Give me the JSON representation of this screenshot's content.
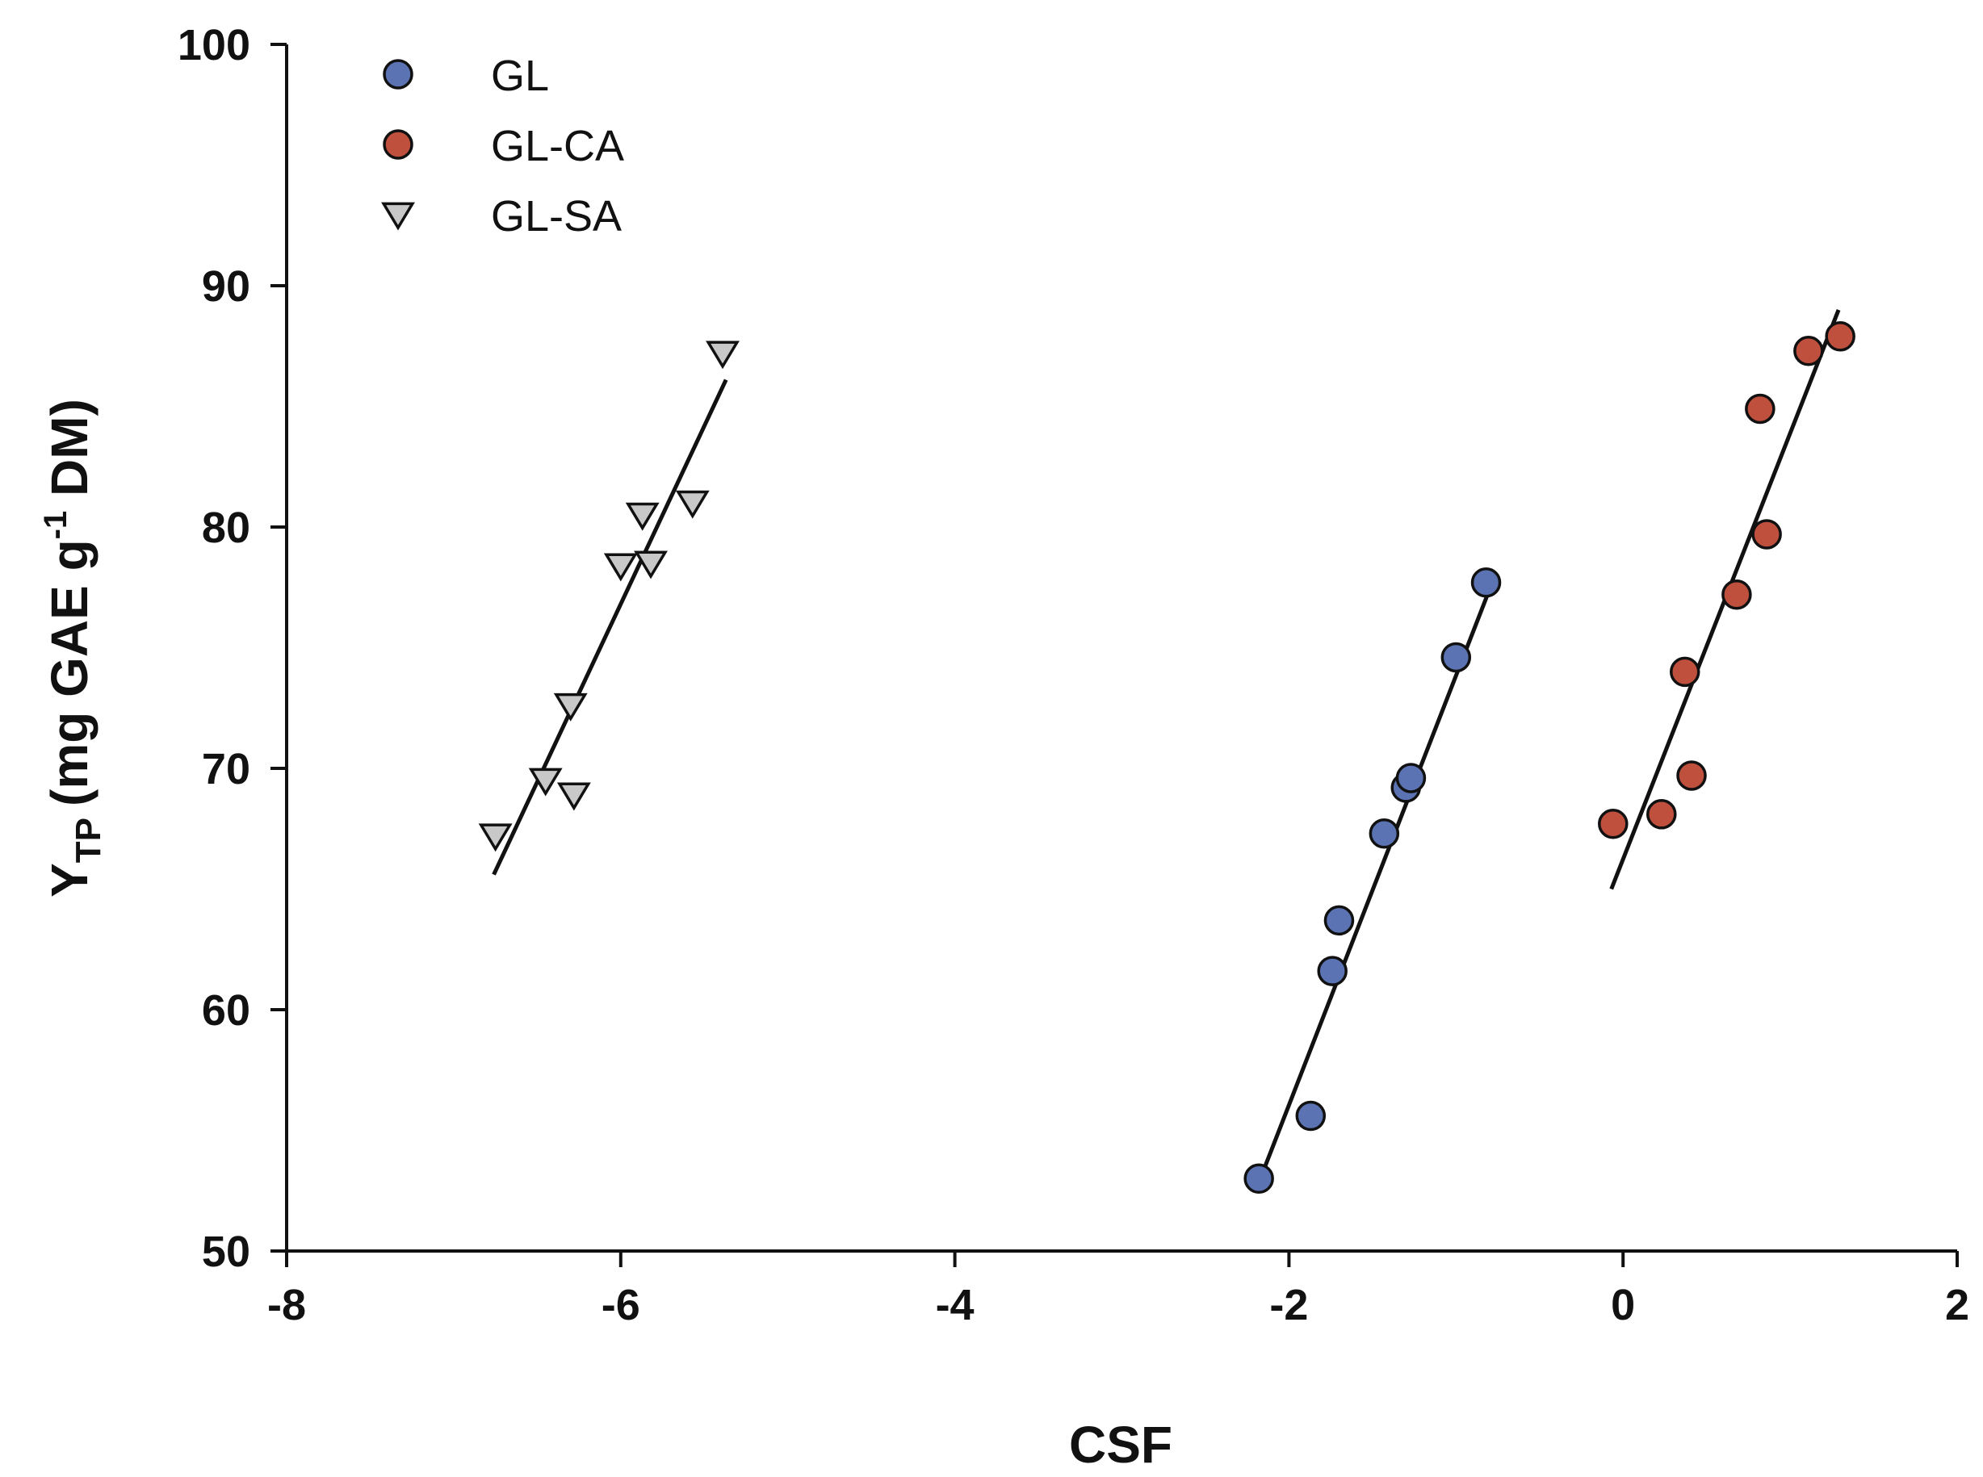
{
  "chart_data": {
    "type": "scatter",
    "title": "",
    "xlabel": "CSF",
    "ylabel": "Y",
    "ylabel_subscript": "TP",
    "ylabel_units_pre": "(mg GAE g",
    "ylabel_units_sup": "-1",
    "ylabel_units_post": " DM)",
    "xlim": [
      -8,
      2
    ],
    "ylim": [
      50,
      100
    ],
    "xticks": [
      "-8",
      "-6",
      "-4",
      "-2",
      "0",
      "2"
    ],
    "yticks": [
      "50",
      "60",
      "70",
      "80",
      "90",
      "100"
    ],
    "legend_position": "top-left",
    "series": [
      {
        "name": "GL",
        "marker": "circle",
        "color": "#5b73b3",
        "x": [
          -2.18,
          -1.87,
          -1.74,
          -1.7,
          -1.43,
          -1.3,
          -1.27,
          -1.0,
          -0.82
        ],
        "y": [
          53.0,
          55.6,
          61.6,
          63.7,
          67.3,
          69.2,
          69.6,
          74.6,
          77.7
        ],
        "fit": {
          "x": [
            -2.16,
            -0.8
          ],
          "y": [
            53.2,
            77.4
          ]
        }
      },
      {
        "name": "GL-CA",
        "marker": "circle",
        "color": "#c0503e",
        "x": [
          -0.06,
          0.23,
          0.37,
          0.41,
          0.68,
          0.82,
          0.86,
          1.11,
          1.3
        ],
        "y": [
          67.7,
          68.1,
          74.0,
          69.7,
          77.2,
          84.9,
          79.7,
          87.3,
          87.9
        ],
        "fit": {
          "x": [
            -0.07,
            1.29
          ],
          "y": [
            65.0,
            89.0
          ]
        }
      },
      {
        "name": "GL-SA",
        "marker": "triangle-down",
        "color": "#c8c8c8",
        "x": [
          -6.75,
          -6.45,
          -6.28,
          -6.3,
          -6.0,
          -5.87,
          -5.82,
          -5.57,
          -5.39
        ],
        "y": [
          67.2,
          69.5,
          68.9,
          72.6,
          78.4,
          80.5,
          78.5,
          81.0,
          87.2
        ],
        "fit": {
          "x": [
            -6.76,
            -5.37
          ],
          "y": [
            65.6,
            86.1
          ]
        }
      }
    ]
  }
}
